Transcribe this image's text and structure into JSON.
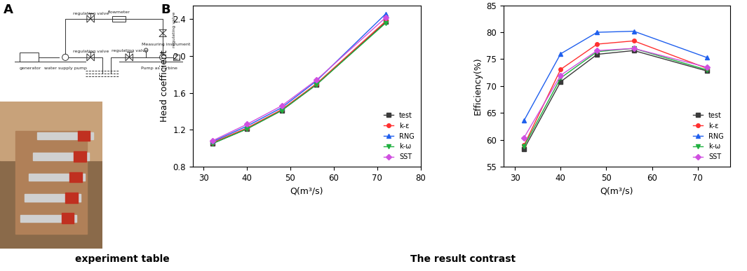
{
  "chart_data": [
    {
      "type": "line",
      "x_label": "Q(m³/s)",
      "y_label": "Head coefficient",
      "x": [
        32,
        40,
        48,
        56,
        72
      ],
      "series": [
        {
          "name": "test",
          "color": "#3a3a3a",
          "marker": "square",
          "line_style": "solid",
          "values": [
            1.05,
            1.21,
            1.41,
            1.69,
            2.37
          ]
        },
        {
          "name": "k-ε",
          "color": "#ff3030",
          "marker": "circle",
          "line_style": "solid",
          "values": [
            1.06,
            1.22,
            1.42,
            1.7,
            2.38
          ]
        },
        {
          "name": "RNG",
          "color": "#2060ee",
          "marker": "triangle_up",
          "line_style": "solid",
          "values": [
            1.07,
            1.24,
            1.44,
            1.73,
            2.46
          ]
        },
        {
          "name": "k-ω",
          "color": "#20b040",
          "marker": "triangle_down",
          "line_style": "solid",
          "values": [
            1.05,
            1.21,
            1.41,
            1.69,
            2.36
          ]
        },
        {
          "name": "SST",
          "color": "#d050e0",
          "marker": "diamond",
          "line_style": "solid",
          "values": [
            1.08,
            1.26,
            1.46,
            1.74,
            2.42
          ]
        }
      ],
      "xlim": [
        27.5,
        80
      ],
      "xticks": [
        30,
        40,
        50,
        60,
        70,
        80
      ],
      "ylim": [
        0.8,
        2.55
      ],
      "yticks": [
        0.8,
        1.2,
        1.6,
        2.0,
        2.4
      ],
      "grid": false,
      "legend": "lower right"
    },
    {
      "type": "line",
      "x_label": "Q(m³/s)",
      "y_label": "Efficiency(%)",
      "x": [
        32,
        40,
        48,
        56,
        72
      ],
      "series": [
        {
          "name": "test",
          "color": "#3a3a3a",
          "marker": "square",
          "line_style": "solid",
          "values": [
            58.3,
            70.8,
            75.9,
            76.6,
            72.8
          ]
        },
        {
          "name": "k-ε",
          "color": "#ff3030",
          "marker": "circle",
          "line_style": "solid",
          "values": [
            59.0,
            73.1,
            77.8,
            78.4,
            73.3
          ]
        },
        {
          "name": "RNG",
          "color": "#2060ee",
          "marker": "triangle_up",
          "line_style": "solid",
          "values": [
            63.6,
            76.0,
            80.0,
            80.2,
            75.3
          ]
        },
        {
          "name": "k-ω",
          "color": "#20b040",
          "marker": "triangle_down",
          "line_style": "solid",
          "values": [
            58.8,
            71.5,
            76.4,
            77.0,
            73.0
          ]
        },
        {
          "name": "SST",
          "color": "#d050e0",
          "marker": "diamond",
          "line_style": "solid",
          "values": [
            60.4,
            72.0,
            76.6,
            77.0,
            73.5
          ]
        }
      ],
      "xlim": [
        27.5,
        77
      ],
      "xticks": [
        30,
        40,
        50,
        60,
        70
      ],
      "ylim": [
        55,
        85
      ],
      "yticks": [
        55,
        60,
        65,
        70,
        75,
        80,
        85
      ],
      "grid": false,
      "legend": "lower right"
    }
  ],
  "diagram": {
    "panel_labels": [
      "A",
      "B"
    ],
    "captions": [
      "experiment table",
      "The result contrast"
    ],
    "schematic_labels": [
      "generator",
      "water supply pump",
      "regulating valve",
      "regulating valve",
      "flowmeter",
      "regulating valve",
      "regulating valve",
      "Pump as Turbine",
      "Measuring instrument"
    ]
  }
}
